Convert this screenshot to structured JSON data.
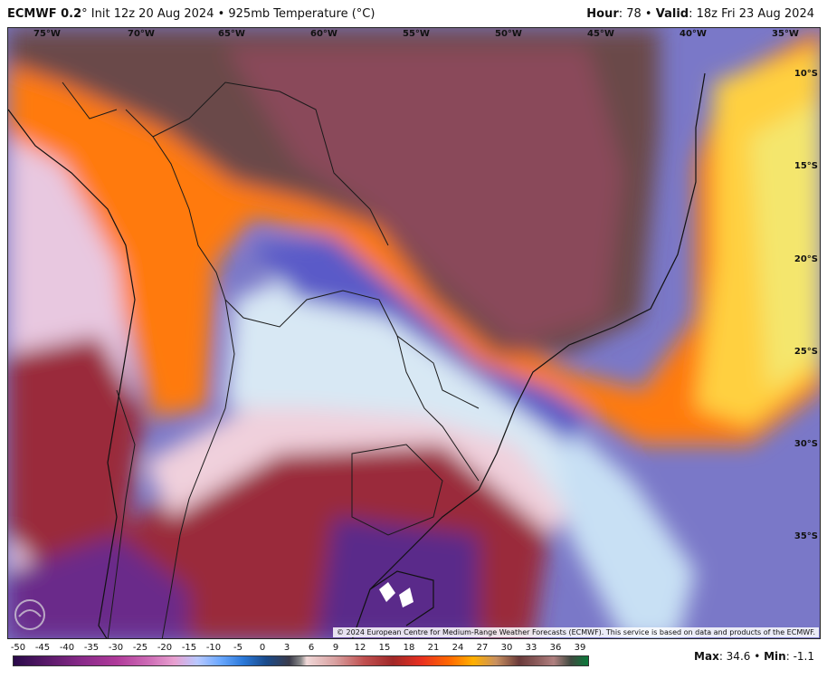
{
  "header": {
    "model": "ECMWF 0.2",
    "init_text": "° Init 12z 20 Aug 2024 • 925mb Temperature (°C)",
    "hour_label": "Hour",
    "hour_value": ": 78 •",
    "valid_label": "Valid",
    "valid_value": ": 18z Fri 23 Aug 2024"
  },
  "map": {
    "lon_labels": [
      "75°W",
      "70°W",
      "65°W",
      "60°W",
      "55°W",
      "50°W",
      "45°W",
      "40°W",
      "35°W"
    ],
    "lat_labels": [
      "10°S",
      "15°S",
      "20°S",
      "25°S",
      "30°S",
      "35°S"
    ],
    "copyright": "© 2024 European Centre for Medium-Range Weather Forecasts (ECMWF). This service is based on data and products of the ECMWF.",
    "logo_icon": "weatherbell-logo-icon"
  },
  "legend": {
    "ticks": [
      "-50",
      "-45",
      "-40",
      "-35",
      "-30",
      "-25",
      "-20",
      "-15",
      "-10",
      "-5",
      "0",
      "3",
      "6",
      "9",
      "12",
      "15",
      "18",
      "21",
      "24",
      "27",
      "30",
      "33",
      "36",
      "39"
    ]
  },
  "stats": {
    "max_label": "Max",
    "max_value": ": 34.6 •",
    "min_label": "Min",
    "min_value": ": -1.1"
  }
}
